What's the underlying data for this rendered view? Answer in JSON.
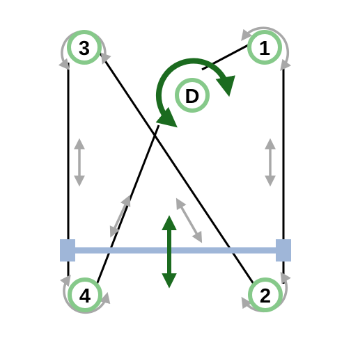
{
  "colors": {
    "background": "#ffffff",
    "cable": "#000000",
    "pulley_ring": "#86c98a",
    "rotation_arrow": "#a8a8a8",
    "drive_arrow": "#1b6b1f",
    "slider_bar": "#9fb6d8",
    "motion_arrow": "#a8a8a8"
  },
  "pulleys": [
    {
      "label": "1"
    },
    {
      "label": "2"
    },
    {
      "label": "3"
    },
    {
      "label": "4"
    },
    {
      "label": "D"
    }
  ],
  "icons": {
    "rotation": "curved-arrow-icon",
    "linear_motion": "double-headed-arrow-icon",
    "drive": "drive-rotation-icon"
  }
}
